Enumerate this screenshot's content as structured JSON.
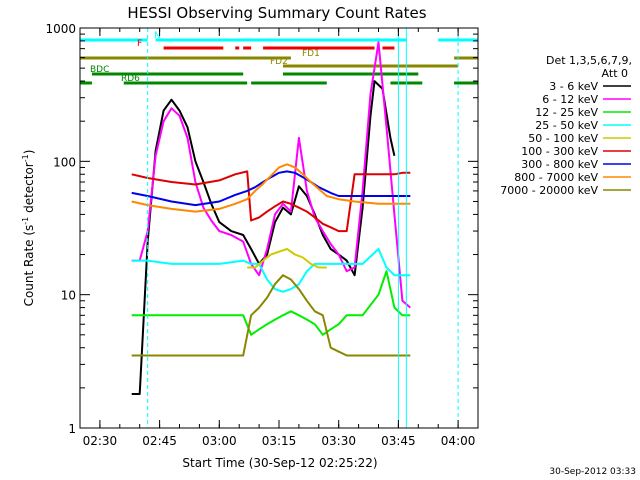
{
  "chart_data": {
    "type": "line",
    "title": "HESSI Observing Summary Count Rates",
    "xlabel": "Start Time (30-Sep-12 02:25:22)",
    "ylabel": "Count Rate (s⁻¹ detector⁻¹)",
    "x_scale": "time",
    "y_scale": "log",
    "xlim": [
      "02:25",
      "04:05"
    ],
    "ylim": [
      1,
      1000
    ],
    "x_ticks": [
      "02:30",
      "02:45",
      "03:00",
      "03:15",
      "03:30",
      "03:45",
      "04:00"
    ],
    "y_ticks": [
      "1",
      "10",
      "100",
      "1000"
    ],
    "timestamp": "30-Sep-2012 03:33",
    "legend": {
      "header_line1": "Det 1,3,5,6,7,9,",
      "header_line2": "Att 0",
      "entries": [
        {
          "label": "3 - 6 keV",
          "color": "#000000"
        },
        {
          "label": "6 - 12 keV",
          "color": "#ff00ff"
        },
        {
          "label": "12 - 25 keV",
          "color": "#00ee00"
        },
        {
          "label": "25 - 50 keV",
          "color": "#00ffff"
        },
        {
          "label": "50 - 100 keV",
          "color": "#cccc00"
        },
        {
          "label": "100 - 300 keV",
          "color": "#dd0000"
        },
        {
          "label": "300 - 800 keV",
          "color": "#0000ee"
        },
        {
          "label": "800 - 7000 keV",
          "color": "#ff8800"
        },
        {
          "label": "7000 - 20000 keV",
          "color": "#888800"
        }
      ]
    },
    "flag_bars": [
      {
        "label": "N",
        "color": "#00ffff",
        "segments": [
          [
            "02:25",
            "02:42"
          ],
          [
            "02:44",
            "03:47"
          ],
          [
            "03:55",
            "04:05"
          ]
        ]
      },
      {
        "label": "F",
        "color": "#ee0000",
        "segments": [
          [
            "02:46",
            "03:01"
          ],
          [
            "03:04",
            "03:05"
          ],
          [
            "03:06",
            "03:08"
          ],
          [
            "03:11",
            "03:39"
          ],
          [
            "03:41",
            "03:44"
          ]
        ]
      },
      {
        "label": "FD1",
        "color": "#888800",
        "segments": [
          [
            "02:25",
            "03:18"
          ],
          [
            "03:59",
            "04:05"
          ]
        ]
      },
      {
        "label": "FD2",
        "color": "#888800",
        "segments": [
          [
            "03:16",
            "04:00"
          ]
        ]
      },
      {
        "label": "BDC",
        "color": "#008800",
        "segments": [
          [
            "02:28",
            "03:06"
          ],
          [
            "03:16",
            "03:50"
          ]
        ]
      },
      {
        "label": "RD6",
        "color": "#008800",
        "segments": [
          [
            "02:25",
            "02:28"
          ],
          [
            "02:36",
            "03:07"
          ],
          [
            "03:08",
            "03:27"
          ],
          [
            "03:43",
            "03:51"
          ],
          [
            "03:59",
            "04:05"
          ]
        ]
      }
    ],
    "vertical_markers": [
      {
        "time": "02:42",
        "color": "#00ffff",
        "style": "dashed"
      },
      {
        "time": "03:45",
        "color": "#00ffff",
        "style": "solid"
      },
      {
        "time": "03:47",
        "color": "#00ffff",
        "style": "solid"
      },
      {
        "time": "04:00",
        "color": "#00ffff",
        "style": "dashed"
      }
    ],
    "series": [
      {
        "name": "3 - 6 keV",
        "color": "#000000",
        "points": [
          [
            "02:38",
            1.8
          ],
          [
            "02:40",
            1.8
          ],
          [
            "02:42",
            25
          ],
          [
            "02:44",
            120
          ],
          [
            "02:46",
            240
          ],
          [
            "02:48",
            290
          ],
          [
            "02:50",
            240
          ],
          [
            "02:52",
            180
          ],
          [
            "02:54",
            100
          ],
          [
            "02:56",
            70
          ],
          [
            "02:58",
            48
          ],
          [
            "03:00",
            35
          ],
          [
            "03:03",
            30
          ],
          [
            "03:06",
            28
          ],
          [
            "03:08",
            22
          ],
          [
            "03:10",
            17
          ],
          [
            "03:12",
            20
          ],
          [
            "03:14",
            35
          ],
          [
            "03:16",
            45
          ],
          [
            "03:18",
            40
          ],
          [
            "03:20",
            65
          ],
          [
            "03:22",
            55
          ],
          [
            "03:24",
            40
          ],
          [
            "03:26",
            28
          ],
          [
            "03:28",
            22
          ],
          [
            "03:30",
            20
          ],
          [
            "03:32",
            18
          ],
          [
            "03:34",
            14
          ],
          [
            "03:36",
            45
          ],
          [
            "03:38",
            220
          ],
          [
            "03:39",
            400
          ],
          [
            "03:41",
            350
          ],
          [
            "03:43",
            150
          ],
          [
            "03:44",
            110
          ]
        ]
      },
      {
        "name": "6 - 12 keV",
        "color": "#ff00ff",
        "points": [
          [
            "02:38",
            18
          ],
          [
            "02:40",
            18
          ],
          [
            "02:42",
            30
          ],
          [
            "02:44",
            110
          ],
          [
            "02:46",
            200
          ],
          [
            "02:48",
            250
          ],
          [
            "02:50",
            220
          ],
          [
            "02:52",
            150
          ],
          [
            "02:54",
            70
          ],
          [
            "02:56",
            45
          ],
          [
            "02:58",
            36
          ],
          [
            "03:00",
            30
          ],
          [
            "03:03",
            28
          ],
          [
            "03:06",
            25
          ],
          [
            "03:08",
            17
          ],
          [
            "03:10",
            14
          ],
          [
            "03:12",
            22
          ],
          [
            "03:14",
            40
          ],
          [
            "03:16",
            48
          ],
          [
            "03:18",
            42
          ],
          [
            "03:20",
            150
          ],
          [
            "03:22",
            60
          ],
          [
            "03:24",
            38
          ],
          [
            "03:26",
            30
          ],
          [
            "03:28",
            24
          ],
          [
            "03:30",
            20
          ],
          [
            "03:32",
            15
          ],
          [
            "03:34",
            16
          ],
          [
            "03:36",
            60
          ],
          [
            "03:38",
            320
          ],
          [
            "03:40",
            780
          ],
          [
            "03:42",
            180
          ],
          [
            "03:44",
            40
          ],
          [
            "03:46",
            9
          ],
          [
            "03:48",
            8
          ]
        ]
      },
      {
        "name": "12 - 25 keV",
        "color": "#00ee00",
        "points": [
          [
            "02:38",
            7
          ],
          [
            "02:42",
            7
          ],
          [
            "02:48",
            7
          ],
          [
            "02:54",
            7
          ],
          [
            "03:00",
            7
          ],
          [
            "03:06",
            7
          ],
          [
            "03:08",
            5
          ],
          [
            "03:10",
            5.5
          ],
          [
            "03:12",
            6
          ],
          [
            "03:14",
            6.5
          ],
          [
            "03:16",
            7
          ],
          [
            "03:18",
            7.5
          ],
          [
            "03:20",
            7
          ],
          [
            "03:22",
            6.5
          ],
          [
            "03:24",
            6
          ],
          [
            "03:26",
            5
          ],
          [
            "03:28",
            5.5
          ],
          [
            "03:30",
            6
          ],
          [
            "03:32",
            7
          ],
          [
            "03:36",
            7
          ],
          [
            "03:40",
            10
          ],
          [
            "03:42",
            15
          ],
          [
            "03:44",
            8
          ],
          [
            "03:46",
            7
          ],
          [
            "03:48",
            7
          ]
        ]
      },
      {
        "name": "25 - 50 keV",
        "color": "#00ffff",
        "points": [
          [
            "02:38",
            18
          ],
          [
            "02:42",
            18
          ],
          [
            "02:48",
            17
          ],
          [
            "02:54",
            17
          ],
          [
            "03:00",
            17
          ],
          [
            "03:06",
            18
          ],
          [
            "03:08",
            17
          ],
          [
            "03:10",
            17
          ],
          [
            "03:12",
            13
          ],
          [
            "03:14",
            11
          ],
          [
            "03:16",
            10.5
          ],
          [
            "03:18",
            11
          ],
          [
            "03:20",
            12
          ],
          [
            "03:22",
            15
          ],
          [
            "03:24",
            17
          ],
          [
            "03:30",
            17
          ],
          [
            "03:36",
            17
          ],
          [
            "03:40",
            22
          ],
          [
            "03:42",
            16
          ],
          [
            "03:44",
            14
          ],
          [
            "03:46",
            14
          ],
          [
            "03:48",
            14
          ]
        ]
      },
      {
        "name": "50 - 100 keV",
        "color": "#cccc00",
        "points": [
          [
            "03:07",
            16
          ],
          [
            "03:09",
            16
          ],
          [
            "03:11",
            18
          ],
          [
            "03:13",
            20
          ],
          [
            "03:15",
            21
          ],
          [
            "03:17",
            22
          ],
          [
            "03:19",
            20
          ],
          [
            "03:21",
            19
          ],
          [
            "03:23",
            17
          ],
          [
            "03:25",
            16
          ],
          [
            "03:27",
            16
          ]
        ]
      },
      {
        "name": "100 - 300 keV",
        "color": "#dd0000",
        "points": [
          [
            "02:38",
            80
          ],
          [
            "02:42",
            75
          ],
          [
            "02:48",
            70
          ],
          [
            "02:54",
            67
          ],
          [
            "03:00",
            72
          ],
          [
            "03:04",
            80
          ],
          [
            "03:07",
            84
          ],
          [
            "03:08",
            36
          ],
          [
            "03:10",
            38
          ],
          [
            "03:12",
            42
          ],
          [
            "03:14",
            46
          ],
          [
            "03:16",
            50
          ],
          [
            "03:18",
            48
          ],
          [
            "03:20",
            45
          ],
          [
            "03:22",
            42
          ],
          [
            "03:24",
            38
          ],
          [
            "03:26",
            34
          ],
          [
            "03:28",
            32
          ],
          [
            "03:30",
            30
          ],
          [
            "03:32",
            30
          ],
          [
            "03:34",
            80
          ],
          [
            "03:40",
            80
          ],
          [
            "03:44",
            80
          ],
          [
            "03:46",
            82
          ],
          [
            "03:48",
            82
          ]
        ]
      },
      {
        "name": "300 - 800 keV",
        "color": "#0000ee",
        "points": [
          [
            "02:38",
            58
          ],
          [
            "02:42",
            55
          ],
          [
            "02:48",
            50
          ],
          [
            "02:54",
            47
          ],
          [
            "03:00",
            50
          ],
          [
            "03:04",
            56
          ],
          [
            "03:07",
            60
          ],
          [
            "03:09",
            64
          ],
          [
            "03:11",
            70
          ],
          [
            "03:13",
            76
          ],
          [
            "03:15",
            82
          ],
          [
            "03:17",
            84
          ],
          [
            "03:19",
            82
          ],
          [
            "03:21",
            76
          ],
          [
            "03:23",
            70
          ],
          [
            "03:25",
            64
          ],
          [
            "03:28",
            58
          ],
          [
            "03:30",
            55
          ],
          [
            "03:34",
            55
          ],
          [
            "03:40",
            55
          ],
          [
            "03:46",
            55
          ],
          [
            "03:48",
            55
          ]
        ]
      },
      {
        "name": "800 - 7000 keV",
        "color": "#ff8800",
        "points": [
          [
            "02:38",
            50
          ],
          [
            "02:42",
            47
          ],
          [
            "02:48",
            44
          ],
          [
            "02:54",
            42
          ],
          [
            "03:00",
            44
          ],
          [
            "03:04",
            48
          ],
          [
            "03:07",
            52
          ],
          [
            "03:09",
            60
          ],
          [
            "03:11",
            68
          ],
          [
            "03:13",
            78
          ],
          [
            "03:15",
            90
          ],
          [
            "03:17",
            95
          ],
          [
            "03:19",
            90
          ],
          [
            "03:21",
            80
          ],
          [
            "03:23",
            70
          ],
          [
            "03:25",
            62
          ],
          [
            "03:27",
            55
          ],
          [
            "03:30",
            52
          ],
          [
            "03:34",
            50
          ],
          [
            "03:40",
            48
          ],
          [
            "03:46",
            48
          ],
          [
            "03:48",
            48
          ]
        ]
      },
      {
        "name": "7000 - 20000 keV",
        "color": "#888800",
        "points": [
          [
            "02:38",
            3.5
          ],
          [
            "02:42",
            3.5
          ],
          [
            "02:48",
            3.5
          ],
          [
            "02:54",
            3.5
          ],
          [
            "03:00",
            3.5
          ],
          [
            "03:06",
            3.5
          ],
          [
            "03:08",
            7
          ],
          [
            "03:10",
            8
          ],
          [
            "03:12",
            9.5
          ],
          [
            "03:14",
            12
          ],
          [
            "03:16",
            14
          ],
          [
            "03:18",
            13
          ],
          [
            "03:20",
            11
          ],
          [
            "03:22",
            9
          ],
          [
            "03:24",
            7.5
          ],
          [
            "03:26",
            7
          ],
          [
            "03:28",
            4
          ],
          [
            "03:32",
            3.5
          ],
          [
            "03:36",
            3.5
          ],
          [
            "03:40",
            3.5
          ],
          [
            "03:44",
            3.5
          ],
          [
            "03:48",
            3.5
          ]
        ]
      }
    ]
  }
}
